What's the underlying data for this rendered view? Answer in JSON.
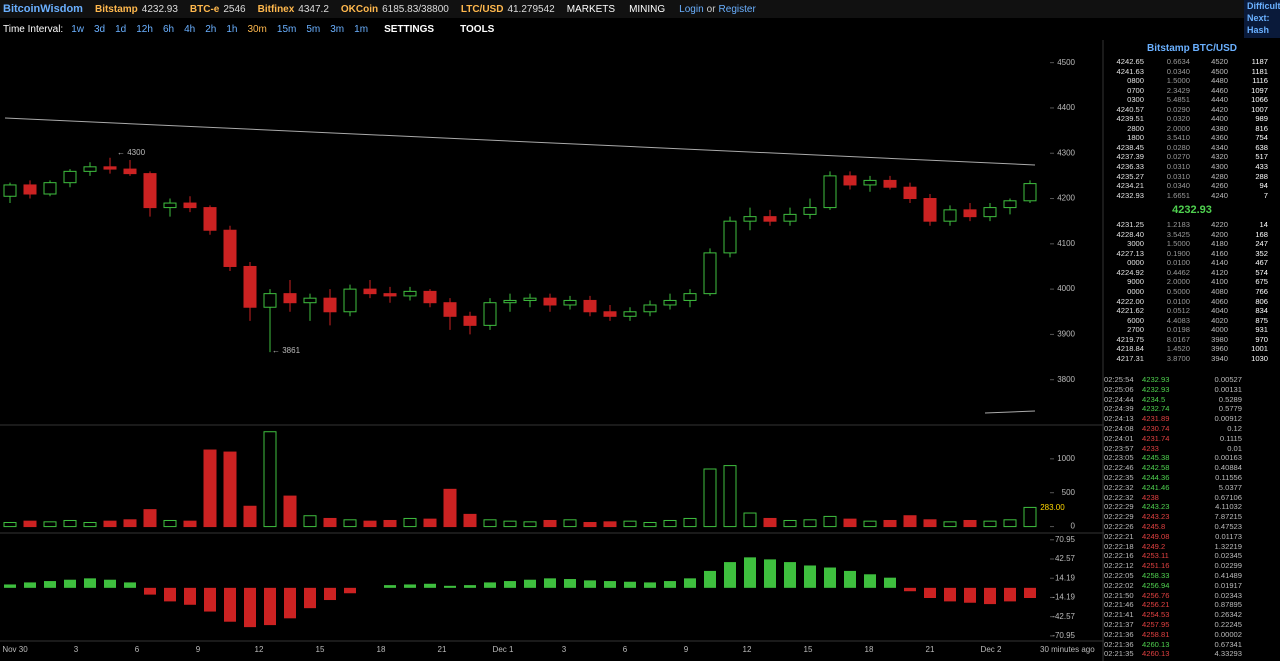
{
  "header": {
    "brand": "BitcoinWisdom",
    "tickers": [
      {
        "exchange": "Bitstamp",
        "price": "4232.93"
      },
      {
        "exchange": "BTC-e",
        "price": "2546"
      },
      {
        "exchange": "Bitfinex",
        "price": "4347.2"
      },
      {
        "exchange": "OKCoin",
        "price": "6185.83/38800"
      },
      {
        "exchange": "LTC/USD",
        "price": "41.279542"
      }
    ],
    "menus": [
      "MARKETS",
      "MINING"
    ],
    "login": "Login",
    "or": "or",
    "register": "Register",
    "side": [
      "Difficult",
      "Next:",
      "Hash Ra"
    ]
  },
  "toolbar": {
    "label": "Time Interval:",
    "intervals": [
      "1w",
      "3d",
      "1d",
      "12h",
      "6h",
      "4h",
      "2h",
      "1h",
      "30m",
      "15m",
      "5m",
      "3m",
      "1m"
    ],
    "active": "30m",
    "menus": [
      "SETTINGS",
      "TOOLS"
    ]
  },
  "chart_data": {
    "type": "candlestick",
    "up_color": "#3fbf3f",
    "down_color": "#cc2222",
    "candles": [
      [
        4205,
        4235,
        4190,
        4230
      ],
      [
        4230,
        4240,
        4200,
        4210
      ],
      [
        4210,
        4240,
        4205,
        4235
      ],
      [
        4235,
        4265,
        4225,
        4260
      ],
      [
        4260,
        4280,
        4250,
        4270
      ],
      [
        4270,
        4290,
        4255,
        4265
      ],
      [
        4265,
        4285,
        4250,
        4255
      ],
      [
        4255,
        4260,
        4160,
        4180
      ],
      [
        4180,
        4200,
        4160,
        4190
      ],
      [
        4190,
        4205,
        4170,
        4180
      ],
      [
        4180,
        4185,
        4120,
        4130
      ],
      [
        4130,
        4140,
        4040,
        4050
      ],
      [
        4050,
        4060,
        3930,
        3960
      ],
      [
        3960,
        4000,
        3861,
        3990
      ],
      [
        3990,
        4020,
        3950,
        3970
      ],
      [
        3970,
        3990,
        3930,
        3980
      ],
      [
        3980,
        4000,
        3920,
        3950
      ],
      [
        3950,
        4010,
        3940,
        4000
      ],
      [
        4000,
        4020,
        3980,
        3990
      ],
      [
        3990,
        4005,
        3970,
        3985
      ],
      [
        3985,
        4005,
        3975,
        3995
      ],
      [
        3995,
        4000,
        3960,
        3970
      ],
      [
        3970,
        3980,
        3910,
        3940
      ],
      [
        3940,
        3950,
        3900,
        3920
      ],
      [
        3920,
        3980,
        3910,
        3970
      ],
      [
        3970,
        3990,
        3950,
        3975
      ],
      [
        3975,
        3990,
        3960,
        3980
      ],
      [
        3980,
        3990,
        3950,
        3965
      ],
      [
        3965,
        3985,
        3955,
        3975
      ],
      [
        3975,
        3985,
        3940,
        3950
      ],
      [
        3950,
        3965,
        3930,
        3940
      ],
      [
        3940,
        3960,
        3930,
        3950
      ],
      [
        3950,
        3975,
        3940,
        3965
      ],
      [
        3965,
        3990,
        3955,
        3975
      ],
      [
        3975,
        4000,
        3960,
        3990
      ],
      [
        3990,
        4090,
        3985,
        4080
      ],
      [
        4080,
        4160,
        4070,
        4150
      ],
      [
        4150,
        4180,
        4130,
        4160
      ],
      [
        4160,
        4175,
        4140,
        4150
      ],
      [
        4150,
        4180,
        4140,
        4165
      ],
      [
        4165,
        4200,
        4155,
        4180
      ],
      [
        4180,
        4260,
        4175,
        4250
      ],
      [
        4250,
        4260,
        4220,
        4230
      ],
      [
        4230,
        4250,
        4215,
        4240
      ],
      [
        4240,
        4250,
        4220,
        4225
      ],
      [
        4225,
        4235,
        4190,
        4200
      ],
      [
        4200,
        4210,
        4140,
        4150
      ],
      [
        4150,
        4185,
        4140,
        4175
      ],
      [
        4175,
        4190,
        4150,
        4160
      ],
      [
        4160,
        4190,
        4150,
        4180
      ],
      [
        4180,
        4200,
        4165,
        4195
      ],
      [
        4195,
        4240,
        4190,
        4232.93
      ]
    ],
    "ylim": [
      3700,
      4550
    ],
    "yticks": [
      3800,
      3900,
      4000,
      4100,
      4200,
      4300,
      4400,
      4500
    ],
    "annotations": [
      "← 4300",
      "← 3861"
    ],
    "volume": {
      "values": [
        60,
        80,
        70,
        90,
        60,
        80,
        100,
        250,
        90,
        80,
        1130,
        1100,
        300,
        1400,
        450,
        160,
        120,
        100,
        80,
        90,
        120,
        110,
        550,
        180,
        100,
        80,
        70,
        90,
        100,
        60,
        70,
        80,
        60,
        90,
        120,
        850,
        900,
        200,
        120,
        90,
        100,
        150,
        110,
        80,
        90,
        160,
        100,
        70,
        90,
        80,
        100,
        283
      ],
      "ylim": [
        -80,
        1470
      ],
      "yticks": [
        0,
        500,
        1000
      ],
      "last_label": "← 283.00"
    },
    "macd": {
      "values": [
        5,
        8,
        10,
        12,
        14,
        12,
        8,
        -10,
        -20,
        -25,
        -35,
        -50,
        -58,
        -55,
        -45,
        -30,
        -18,
        -8,
        0,
        4,
        5,
        6,
        3,
        4,
        8,
        10,
        12,
        14,
        13,
        11,
        10,
        9,
        8,
        10,
        14,
        25,
        38,
        45,
        42,
        38,
        33,
        30,
        25,
        20,
        15,
        -5,
        -15,
        -20,
        -22,
        -24,
        -20,
        -15
      ],
      "ylim": [
        -77,
        78
      ],
      "yticks": [
        70.95,
        42.57,
        14.19,
        -14.19,
        -42.57,
        -70.95
      ]
    },
    "x_labels": [
      "Nov 30",
      "3",
      "6",
      "9",
      "12",
      "15",
      "18",
      "21",
      "Dec 1",
      "3",
      "6",
      "9",
      "12",
      "15",
      "18",
      "21",
      "Dec 2"
    ],
    "updated": "30 minutes ago"
  },
  "orderbook": {
    "title": "Bitstamp BTC/USD",
    "asks": [
      [
        "4242.65",
        "0.6634",
        "4520",
        "1187"
      ],
      [
        "4241.63",
        "0.0340",
        "4500",
        "1181"
      ],
      [
        "0800",
        "1.5000",
        "4480",
        "1116"
      ],
      [
        "0700",
        "2.3429",
        "4460",
        "1097"
      ],
      [
        "0300",
        "5.4851",
        "4440",
        "1066"
      ],
      [
        "4240.57",
        "0.0290",
        "4420",
        "1007"
      ],
      [
        "4239.51",
        "0.0320",
        "4400",
        "989"
      ],
      [
        "2800",
        "2.0000",
        "4380",
        "816"
      ],
      [
        "1800",
        "3.5410",
        "4360",
        "754"
      ],
      [
        "4238.45",
        "0.0280",
        "4340",
        "638"
      ],
      [
        "4237.39",
        "0.0270",
        "4320",
        "517"
      ],
      [
        "4236.33",
        "0.0310",
        "4300",
        "433"
      ],
      [
        "4235.27",
        "0.0310",
        "4280",
        "288"
      ],
      [
        "4234.21",
        "0.0340",
        "4260",
        "94"
      ],
      [
        "4232.93",
        "1.6651",
        "4240",
        "7"
      ]
    ],
    "last": "4232.93",
    "bids": [
      [
        "4231.25",
        "1.2183",
        "4220",
        "14"
      ],
      [
        "4228.40",
        "3.5425",
        "4200",
        "168"
      ],
      [
        "3000",
        "1.5000",
        "4180",
        "247"
      ],
      [
        "4227.13",
        "0.1900",
        "4160",
        "352"
      ],
      [
        "0000",
        "0.0100",
        "4140",
        "467"
      ],
      [
        "4224.92",
        "0.4462",
        "4120",
        "574"
      ],
      [
        "9000",
        "2.0000",
        "4100",
        "675"
      ],
      [
        "0000",
        "0.5000",
        "4080",
        "766"
      ],
      [
        "4222.00",
        "0.0100",
        "4060",
        "806"
      ],
      [
        "4221.62",
        "0.0512",
        "4040",
        "834"
      ],
      [
        "6000",
        "4.4083",
        "4020",
        "875"
      ],
      [
        "2700",
        "0.0198",
        "4000",
        "931"
      ],
      [
        "4219.75",
        "8.0167",
        "3980",
        "970"
      ],
      [
        "4218.84",
        "1.4520",
        "3960",
        "1001"
      ],
      [
        "4217.31",
        "3.8700",
        "3940",
        "1030"
      ]
    ]
  },
  "trades": [
    [
      "02:25:54",
      "4232.93",
      "0.00527",
      "#4fd14f"
    ],
    [
      "02:25:06",
      "4232.93",
      "0.00131",
      "#4fd14f"
    ],
    [
      "02:24:44",
      "4234.5",
      "0.5289",
      "#4fd14f"
    ],
    [
      "02:24:39",
      "4232.74",
      "0.5779",
      "#4fd14f"
    ],
    [
      "02:24:13",
      "4231.89",
      "0.00912",
      "#e04040"
    ],
    [
      "02:24:08",
      "4230.74",
      "0.12",
      "#e04040"
    ],
    [
      "02:24:01",
      "4231.74",
      "0.1115",
      "#e04040"
    ],
    [
      "02:23:57",
      "4233",
      "0.01",
      "#e04040"
    ],
    [
      "02:23:05",
      "4245.38",
      "0.00163",
      "#4fd14f"
    ],
    [
      "02:22:46",
      "4242.58",
      "0.40884",
      "#4fd14f"
    ],
    [
      "02:22:35",
      "4244.36",
      "0.11556",
      "#4fd14f"
    ],
    [
      "02:22:32",
      "4241.46",
      "5.0377",
      "#4fd14f"
    ],
    [
      "02:22:32",
      "4238",
      "0.67106",
      "#e04040"
    ],
    [
      "02:22:29",
      "4243.23",
      "4.11032",
      "#4fd14f"
    ],
    [
      "02:22:29",
      "4243.23",
      "7.87215",
      "#e04040"
    ],
    [
      "02:22:26",
      "4245.8",
      "0.47523",
      "#e04040"
    ],
    [
      "02:22:21",
      "4249.08",
      "0.01173",
      "#e04040"
    ],
    [
      "02:22:18",
      "4249.2",
      "1.32219",
      "#e04040"
    ],
    [
      "02:22:16",
      "4253.11",
      "0.02345",
      "#e04040"
    ],
    [
      "02:22:12",
      "4251.16",
      "0.02299",
      "#e04040"
    ],
    [
      "02:22:05",
      "4258.33",
      "0.41489",
      "#4fd14f"
    ],
    [
      "02:22:02",
      "4256.94",
      "0.01917",
      "#4fd14f"
    ],
    [
      "02:21:50",
      "4256.76",
      "0.02343",
      "#e04040"
    ],
    [
      "02:21:46",
      "4256.21",
      "0.87895",
      "#e04040"
    ],
    [
      "02:21:41",
      "4254.53",
      "0.26342",
      "#e04040"
    ],
    [
      "02:21:37",
      "4257.95",
      "0.22245",
      "#e04040"
    ],
    [
      "02:21:36",
      "4258.81",
      "0.00002",
      "#e04040"
    ],
    [
      "02:21:36",
      "4260.13",
      "0.67341",
      "#4fd14f"
    ],
    [
      "02:21:35",
      "4260.13",
      "4.33293",
      "#e04040"
    ]
  ]
}
